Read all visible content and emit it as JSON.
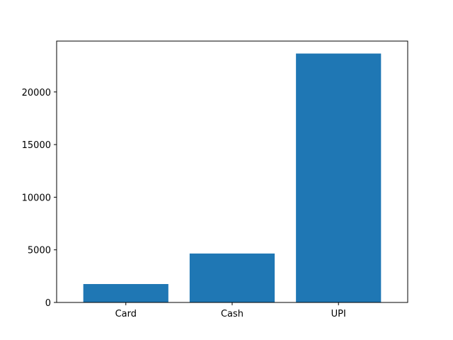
{
  "chart_data": {
    "type": "bar",
    "title": "",
    "xlabel": "",
    "ylabel": "",
    "categories": [
      "Card",
      "Cash",
      "UPI"
    ],
    "values": [
      1750,
      4650,
      23650
    ],
    "ylim": [
      0,
      24833
    ],
    "yticks": [
      0,
      5000,
      10000,
      15000,
      20000
    ],
    "bar_color": "#1f77b4",
    "grid": false,
    "legend": "none"
  }
}
